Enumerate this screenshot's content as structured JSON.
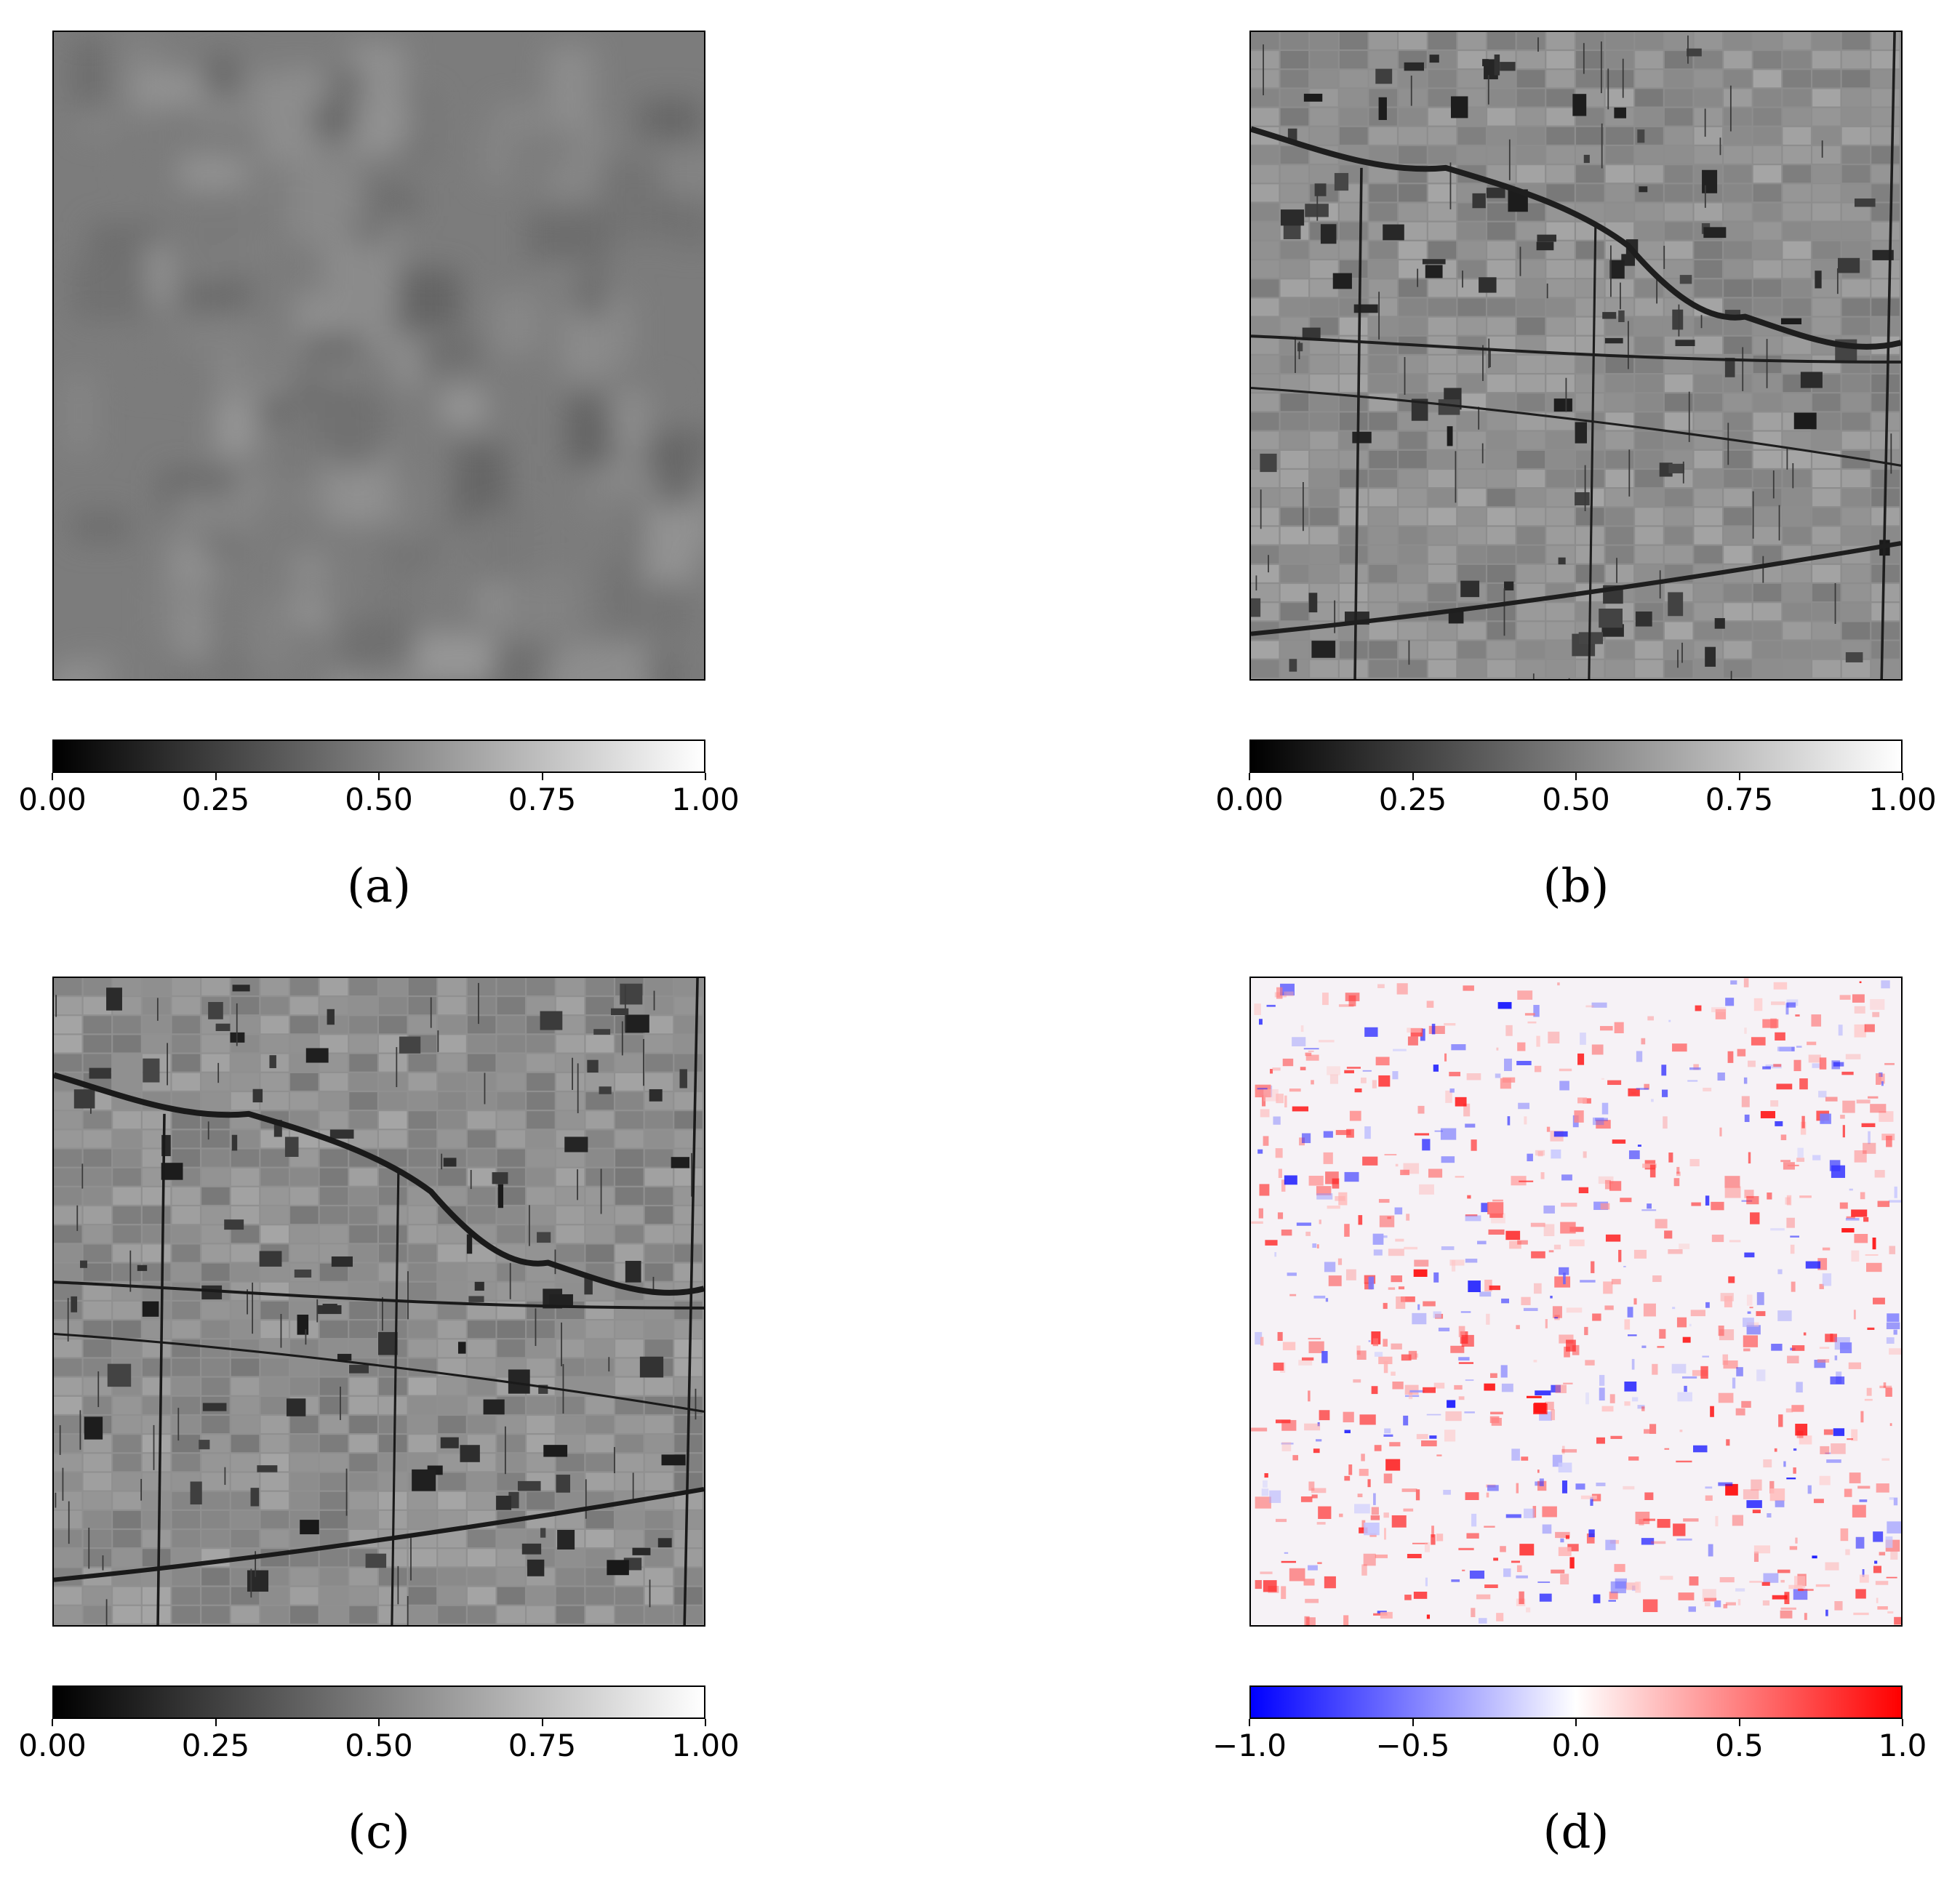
{
  "panels": [
    {
      "id": "a",
      "caption": "(a)",
      "colormap": "gray",
      "image_description_kind": "blurred grayscale",
      "ticks": [
        "0.00",
        "0.25",
        "0.50",
        "0.75",
        "1.00"
      ]
    },
    {
      "id": "b",
      "caption": "(b)",
      "colormap": "gray",
      "image_description_kind": "grayscale field map",
      "ticks": [
        "0.00",
        "0.25",
        "0.50",
        "0.75",
        "1.00"
      ]
    },
    {
      "id": "c",
      "caption": "(c)",
      "colormap": "gray",
      "image_description_kind": "grayscale field map",
      "ticks": [
        "0.00",
        "0.25",
        "0.50",
        "0.75",
        "1.00"
      ]
    },
    {
      "id": "d",
      "caption": "(d)",
      "colormap": "bwr",
      "image_description_kind": "red-blue difference map",
      "ticks": [
        "−1.0",
        "−0.5",
        "0.0",
        "0.5",
        "1.0"
      ]
    }
  ],
  "colors": {
    "cmap_gray_low": "#000000",
    "cmap_gray_high": "#ffffff",
    "cmap_bwr_low": "#0000ff",
    "cmap_bwr_mid": "#ffffff",
    "cmap_bwr_high": "#ff0000",
    "blur_base": "#7d7d7d",
    "field_base": "#8f8f8f"
  }
}
